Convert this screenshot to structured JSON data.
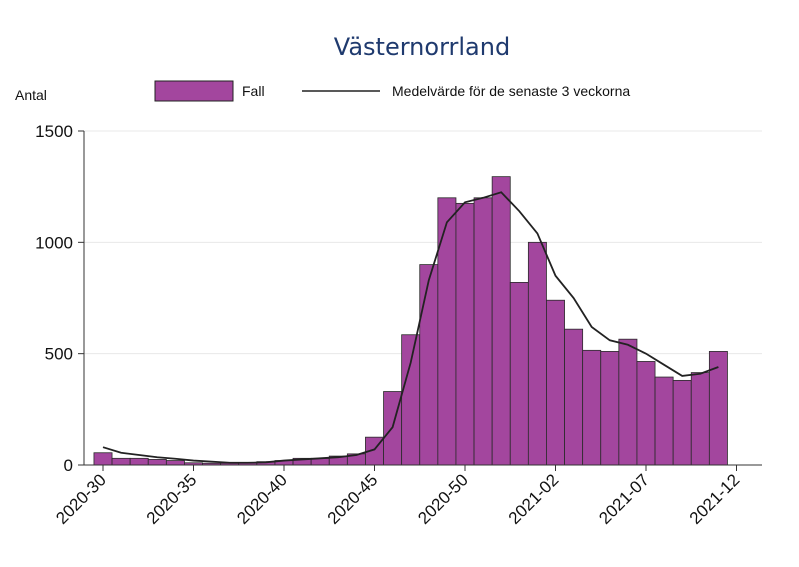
{
  "chart_data": {
    "type": "bar",
    "title": "Västernorrland",
    "ylabel": "Antal",
    "xlabel": "",
    "ylim": [
      0,
      1500
    ],
    "y_ticks": [
      0,
      500,
      1000,
      1500
    ],
    "grid": true,
    "legend_position": "top",
    "x_tick_labels": [
      "2020-30",
      "2020-35",
      "2020-40",
      "2020-45",
      "2020-50",
      "2021-02",
      "2021-07",
      "2021-12"
    ],
    "x_tick_positions": [
      "2020-30",
      "2020-35",
      "2020-40",
      "2020-45",
      "2020-50",
      "2021-02",
      "2021-07",
      "2021-12"
    ],
    "categories": [
      "2020-30",
      "2020-31",
      "2020-32",
      "2020-33",
      "2020-34",
      "2020-35",
      "2020-36",
      "2020-37",
      "2020-38",
      "2020-39",
      "2020-40",
      "2020-41",
      "2020-42",
      "2020-43",
      "2020-44",
      "2020-45",
      "2020-46",
      "2020-47",
      "2020-48",
      "2020-49",
      "2020-50",
      "2020-51",
      "2020-52",
      "2020-53",
      "2021-01",
      "2021-02",
      "2021-03",
      "2021-04",
      "2021-05",
      "2021-06",
      "2021-07",
      "2021-08",
      "2021-09",
      "2021-10",
      "2021-11",
      "2021-12"
    ],
    "series": [
      {
        "name": "Fall",
        "kind": "bar",
        "color": "#a3469e",
        "values": [
          55,
          30,
          30,
          25,
          20,
          10,
          8,
          8,
          10,
          15,
          20,
          30,
          30,
          40,
          50,
          125,
          330,
          585,
          900,
          1200,
          1175,
          1200,
          1295,
          820,
          1000,
          740,
          610,
          515,
          510,
          565,
          465,
          395,
          380,
          415,
          510,
          null
        ]
      },
      {
        "name": "Medelvärde för de senaste 3 veckorna",
        "kind": "line",
        "color": "#222222",
        "values": [
          80,
          55,
          45,
          35,
          28,
          20,
          15,
          10,
          10,
          12,
          20,
          25,
          30,
          35,
          45,
          70,
          170,
          460,
          830,
          1090,
          1180,
          1200,
          1225,
          1140,
          1040,
          850,
          750,
          620,
          560,
          540,
          500,
          450,
          400,
          410,
          440,
          null
        ]
      }
    ]
  }
}
